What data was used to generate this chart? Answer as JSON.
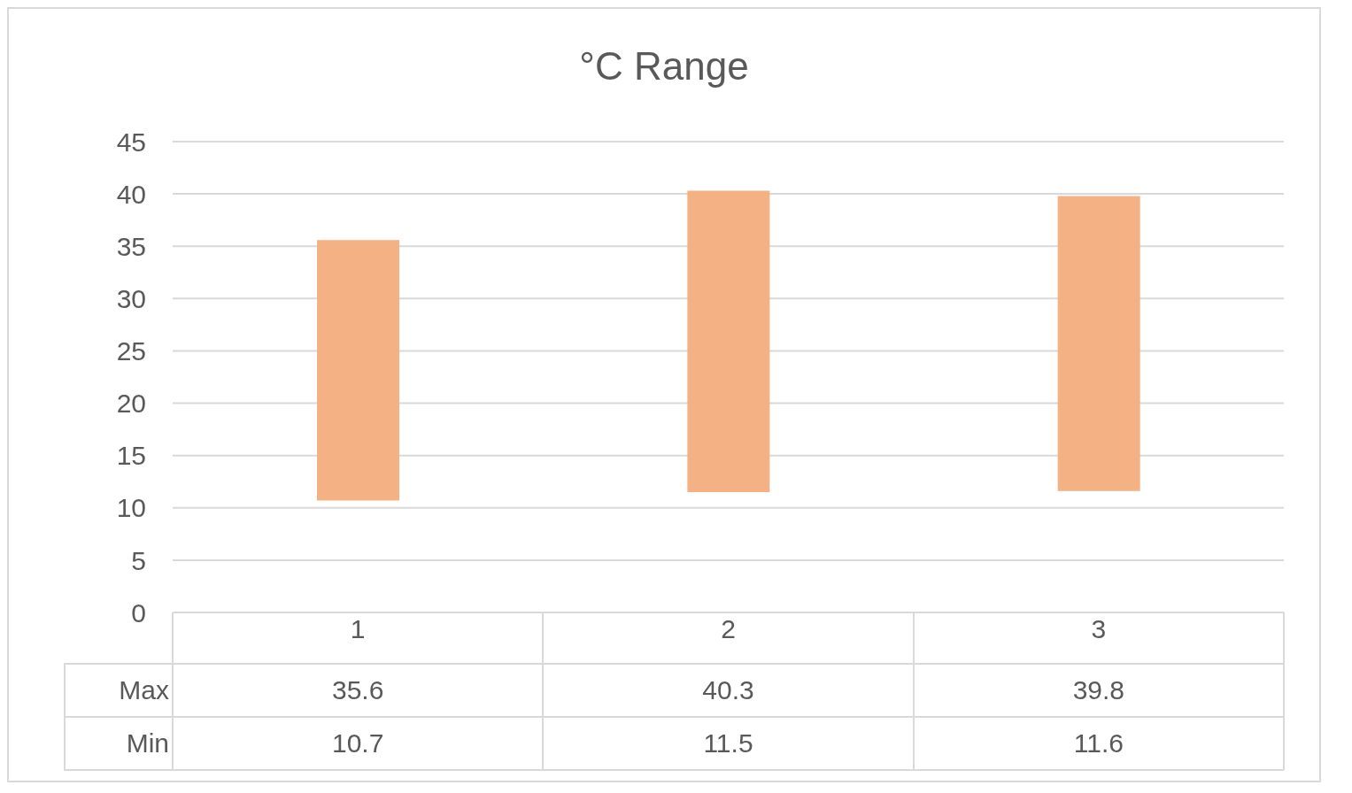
{
  "chart_data": {
    "type": "bar",
    "title": "°C Range",
    "categories": [
      "1",
      "2",
      "3"
    ],
    "base": [
      10.7,
      11.5,
      11.6
    ],
    "values": [
      24.9,
      28.8,
      28.2
    ],
    "color": "#f4b183",
    "ylim": [
      0,
      45
    ],
    "yticks": [
      0,
      5,
      10,
      15,
      20,
      25,
      30,
      35,
      40,
      45
    ],
    "grid": "y",
    "annotations": [
      "Max",
      "35.6",
      "40.3",
      "39.8",
      "Min",
      "10.7",
      "11.5",
      "11.6"
    ]
  }
}
